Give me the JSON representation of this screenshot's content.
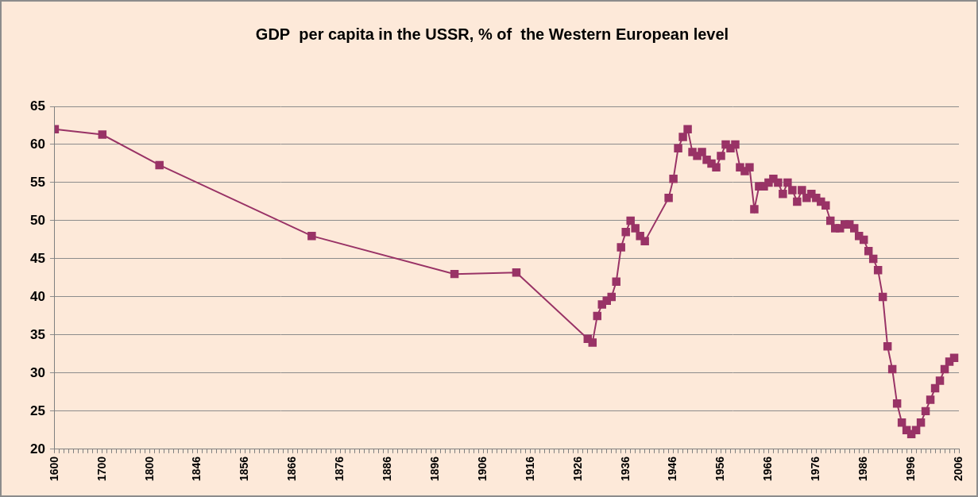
{
  "chart_data": {
    "type": "line",
    "title": "GDP  per capita in the USSR, % of  the Western European level",
    "categories": [
      "1600",
      null,
      null,
      null,
      null,
      null,
      null,
      null,
      null,
      null,
      "1700",
      null,
      null,
      null,
      null,
      null,
      null,
      null,
      null,
      null,
      "1800",
      null,
      null,
      null,
      null,
      null,
      null,
      null,
      null,
      null,
      "1846",
      null,
      null,
      null,
      null,
      null,
      null,
      null,
      null,
      null,
      "1856",
      null,
      null,
      null,
      null,
      null,
      null,
      null,
      null,
      null,
      "1866",
      null,
      null,
      null,
      null,
      null,
      null,
      null,
      null,
      null,
      "1876",
      null,
      null,
      null,
      null,
      null,
      null,
      null,
      null,
      null,
      "1886",
      null,
      null,
      null,
      null,
      null,
      null,
      null,
      null,
      null,
      "1896",
      null,
      null,
      null,
      null,
      null,
      null,
      null,
      null,
      null,
      "1906",
      null,
      null,
      null,
      null,
      null,
      null,
      null,
      null,
      null,
      "1916",
      null,
      null,
      null,
      null,
      null,
      null,
      null,
      null,
      null,
      "1926",
      null,
      null,
      null,
      null,
      null,
      null,
      null,
      null,
      null,
      "1936",
      null,
      null,
      null,
      null,
      null,
      null,
      null,
      null,
      null,
      "1946",
      null,
      null,
      null,
      null,
      null,
      null,
      null,
      null,
      null,
      "1956",
      null,
      null,
      null,
      null,
      null,
      null,
      null,
      null,
      null,
      "1966",
      null,
      null,
      null,
      null,
      null,
      null,
      null,
      null,
      null,
      "1976",
      null,
      null,
      null,
      null,
      null,
      null,
      null,
      null,
      null,
      "1986",
      null,
      null,
      null,
      null,
      null,
      null,
      null,
      null,
      null,
      "1996",
      null,
      null,
      null,
      null,
      null,
      null,
      null,
      null,
      null,
      "2006"
    ],
    "values": [
      62,
      null,
      null,
      null,
      null,
      null,
      null,
      null,
      null,
      null,
      61.3,
      null,
      null,
      null,
      null,
      null,
      null,
      null,
      null,
      null,
      null,
      null,
      57.3,
      null,
      null,
      null,
      null,
      null,
      null,
      null,
      null,
      null,
      null,
      null,
      null,
      null,
      null,
      null,
      null,
      null,
      null,
      null,
      null,
      null,
      null,
      null,
      null,
      null,
      null,
      null,
      null,
      null,
      null,
      null,
      48,
      null,
      null,
      null,
      null,
      null,
      null,
      null,
      null,
      null,
      null,
      null,
      null,
      null,
      null,
      null,
      null,
      null,
      null,
      null,
      null,
      null,
      null,
      null,
      null,
      null,
      null,
      null,
      null,
      null,
      43,
      null,
      null,
      null,
      null,
      null,
      null,
      null,
      null,
      null,
      null,
      null,
      null,
      43.2,
      null,
      null,
      null,
      null,
      null,
      null,
      null,
      null,
      null,
      null,
      null,
      null,
      null,
      null,
      34.5,
      34,
      37.5,
      39,
      39.5,
      40,
      42,
      46.5,
      48.5,
      50,
      49,
      48,
      47.3,
      null,
      null,
      null,
      null,
      53,
      55.5,
      59.5,
      61,
      62,
      59,
      58.5,
      59,
      58,
      57.5,
      57,
      58.5,
      60,
      59.5,
      60,
      57,
      56.5,
      57,
      51.5,
      54.5,
      54.5,
      55,
      55.5,
      55,
      53.5,
      55,
      54,
      52.5,
      54,
      53,
      53.5,
      53,
      52.5,
      52,
      50,
      49,
      49,
      49.5,
      49.5,
      49,
      48,
      47.5,
      46,
      45,
      43.5,
      40,
      33.5,
      30.5,
      26,
      23.5,
      22.5,
      22,
      22.5,
      23.5,
      25,
      26.5,
      28,
      29,
      30.5,
      31.5,
      32,
      null
    ],
    "color": "#993366",
    "marker": "square",
    "line_style": "solid",
    "ylim": [
      20,
      65
    ],
    "yticks": [
      20,
      25,
      30,
      35,
      40,
      45,
      50,
      55,
      60,
      65
    ],
    "grid": true
  }
}
